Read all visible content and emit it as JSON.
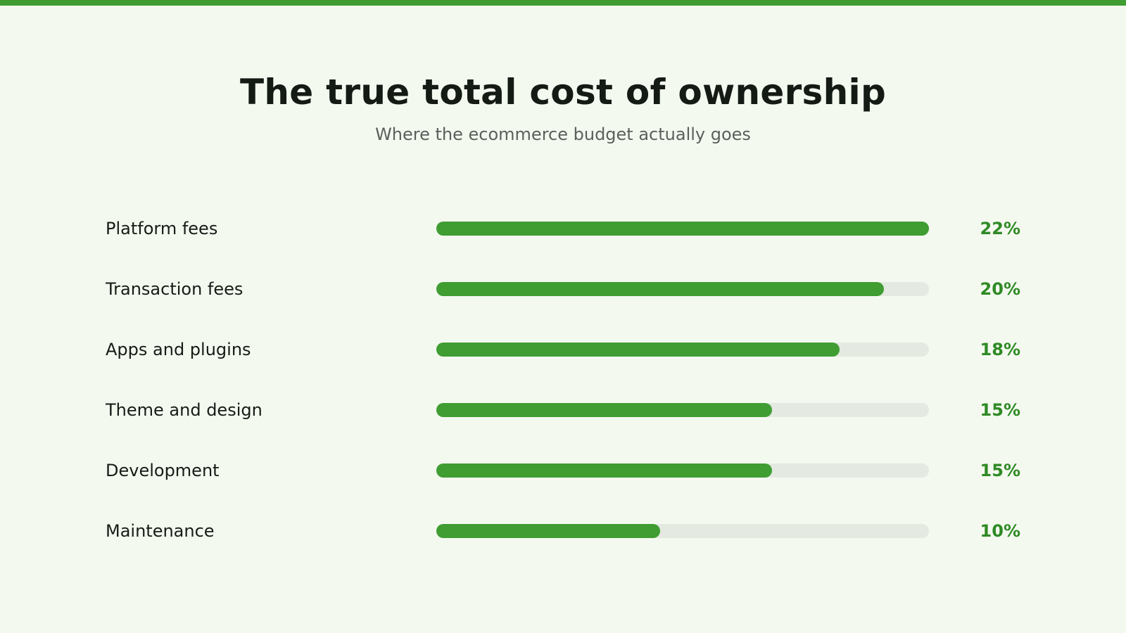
{
  "colors": {
    "accent": "#3f9d32",
    "track": "#e4e9e1",
    "value_text": "#2f8a25",
    "title_text": "#141a14",
    "subtitle_text": "#5c605c",
    "background": "#f4f9f0"
  },
  "chart_data": {
    "type": "bar",
    "orientation": "horizontal",
    "title": "The true total cost of ownership",
    "subtitle": "Where the ecommerce budget actually goes",
    "categories": [
      "Platform fees",
      "Transaction fees",
      "Apps and plugins",
      "Theme and design",
      "Development",
      "Maintenance"
    ],
    "values": [
      22,
      20,
      18,
      15,
      15,
      10
    ],
    "value_labels": [
      "22%",
      "20%",
      "18%",
      "15%",
      "15%",
      "10%"
    ],
    "unit": "%",
    "xlim": [
      0,
      22
    ],
    "grid": false,
    "legend": "none"
  }
}
